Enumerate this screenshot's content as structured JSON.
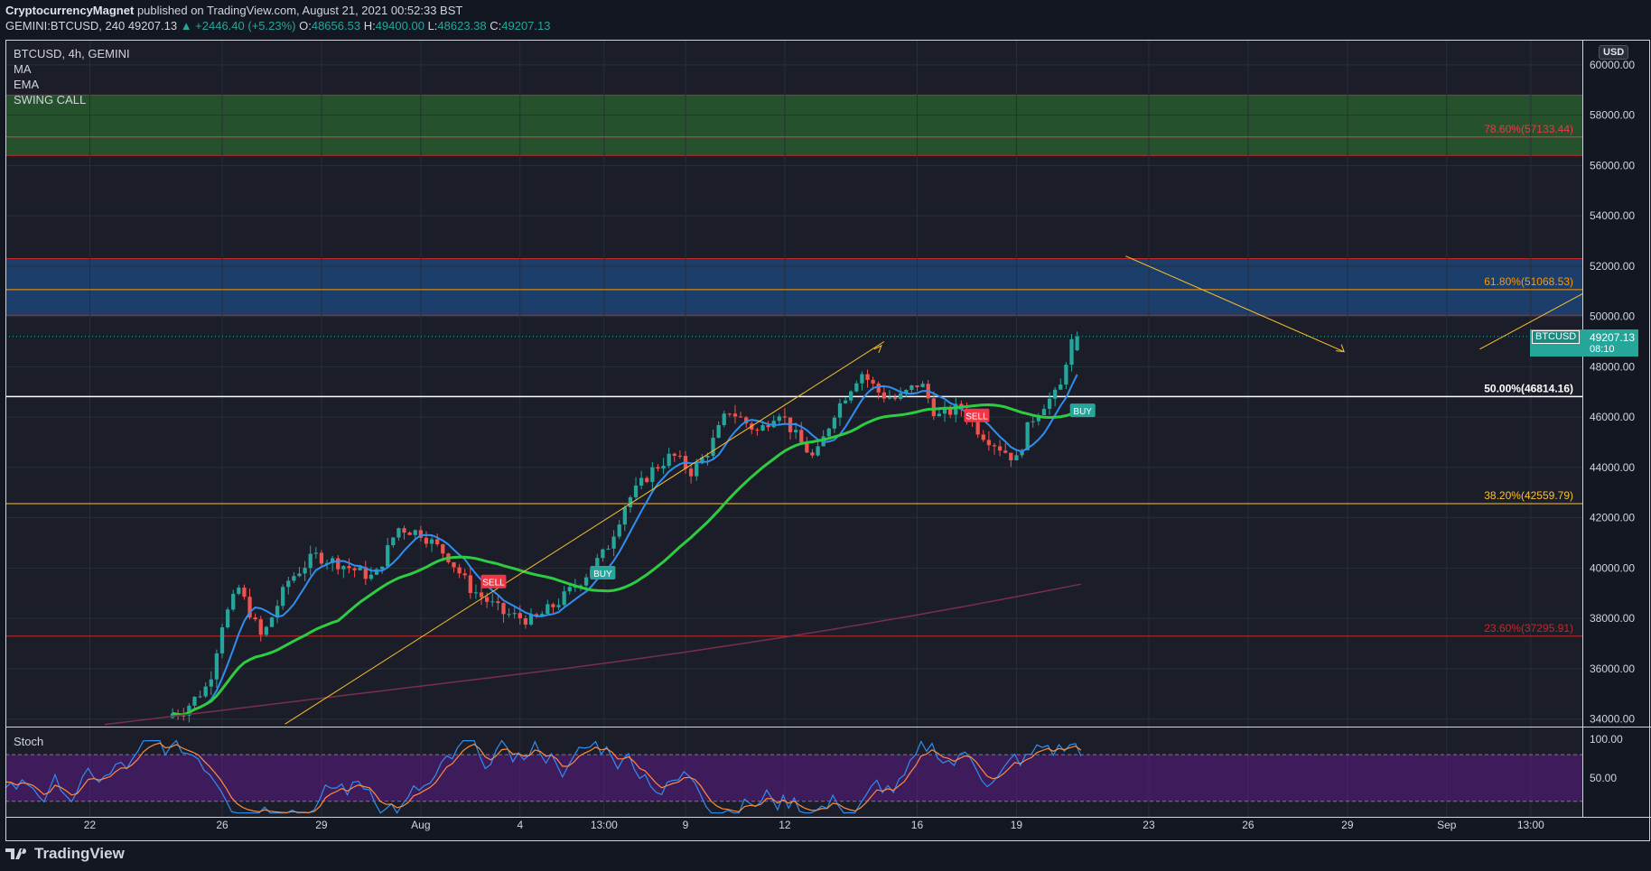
{
  "header": {
    "author": "CryptocurrencyMagnet",
    "published": "published on TradingView.com, August 21, 2021 00:52:33 BST",
    "symbol_line": "GEMINI:BTCUSD, 240",
    "last": "49207.13",
    "change": "▲ +2446.40 (+5.23%)",
    "open_label": "O:",
    "open": "48656.53",
    "high_label": "H:",
    "high": "49400.00",
    "low_label": "L:",
    "low": "48623.38",
    "close_label": "C:",
    "close": "49207.13"
  },
  "legend": {
    "title": "BTCUSD, 4h, GEMINI",
    "items": [
      "MA",
      "EMA",
      "SWING CALL"
    ],
    "stoch": "Stoch"
  },
  "price_axis": {
    "currency": "USD",
    "current_symbol": "BTCUSD",
    "current_price": "49207.13",
    "countdown": "08:10"
  },
  "footer": {
    "brand": "TradingView"
  },
  "chart_data": {
    "type": "candlestick",
    "title": "BTCUSD, 4h, GEMINI",
    "ylim": [
      33700,
      61000
    ],
    "y_ticks": [
      34000,
      36000,
      38000,
      40000,
      42000,
      44000,
      46000,
      48000,
      50000,
      52000,
      54000,
      56000,
      58000,
      60000
    ],
    "y_tick_labels": [
      "34000.00",
      "36000.00",
      "38000.00",
      "40000.00",
      "42000.00",
      "44000.00",
      "46000.00",
      "48000.00",
      "50000.00",
      "52000.00",
      "54000.00",
      "56000.00",
      "58000.00",
      "60000.00"
    ],
    "x_tick_labels": [
      "22",
      "26",
      "29",
      "Aug",
      "4",
      "13:00",
      "9",
      "12",
      "16",
      "19",
      "23",
      "26",
      "29",
      "Sep",
      "13:00"
    ],
    "x_tick_days": [
      22,
      26,
      29,
      32,
      35,
      37.54,
      40,
      43,
      47,
      50,
      54,
      57,
      60,
      63,
      65.54
    ],
    "x_range_days": [
      19.45,
      67.1
    ],
    "fib_levels": [
      {
        "label": "78.60%(57133.44)",
        "price": 57133.44,
        "color": "#f23645"
      },
      {
        "label": "61.80%(51068.53)",
        "price": 51068.53,
        "color": "#ff9800"
      },
      {
        "label": "50.00%(46814.16)",
        "price": 46814.16,
        "color": "#ffffff"
      },
      {
        "label": "38.20%(42559.79)",
        "price": 42559.79,
        "color": "#fbc02d"
      },
      {
        "label": "23.60%(37295.91)",
        "price": 37295.91,
        "color": "#c62828"
      }
    ],
    "zones": [
      {
        "name": "green",
        "from": 56400,
        "to": 58800,
        "color": "#2e7d32"
      },
      {
        "name": "blue",
        "from": 50050,
        "to": 52300,
        "color": "#1e5aa0"
      }
    ],
    "signals": [
      {
        "label": "SELL",
        "day": 34.2,
        "price": 39450,
        "color": "#f23645"
      },
      {
        "label": "BUY",
        "day": 37.5,
        "price": 39800,
        "color": "#26a69a"
      },
      {
        "label": "SELL",
        "day": 48.8,
        "price": 46050,
        "color": "#f23645"
      },
      {
        "label": "BUY",
        "day": 52.0,
        "price": 46250,
        "color": "#26a69a"
      }
    ],
    "stoch_ylim": [
      0,
      115
    ],
    "stoch_ticks": [
      100,
      50
    ],
    "stoch_tick_labels": [
      "100.00",
      "50.00"
    ],
    "stoch_band": [
      20,
      80
    ]
  }
}
